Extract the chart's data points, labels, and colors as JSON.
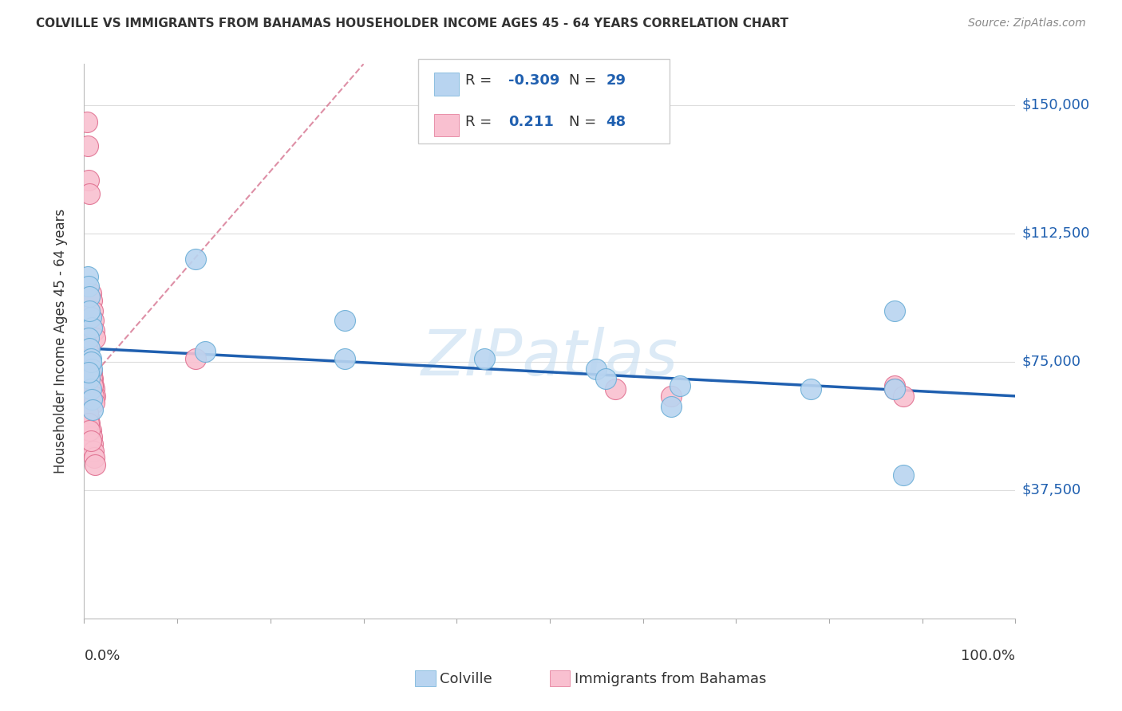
{
  "title": "COLVILLE VS IMMIGRANTS FROM BAHAMAS HOUSEHOLDER INCOME AGES 45 - 64 YEARS CORRELATION CHART",
  "source": "Source: ZipAtlas.com",
  "ylabel": "Householder Income Ages 45 - 64 years",
  "xlim": [
    0,
    1.0
  ],
  "ylim": [
    0,
    162000
  ],
  "yticks": [
    0,
    37500,
    75000,
    112500,
    150000
  ],
  "ytick_labels": [
    "",
    "$37,500",
    "$75,000",
    "$112,500",
    "$150,000"
  ],
  "background_color": "#ffffff",
  "grid_color": "#dddddd",
  "watermark": "ZIPatlas",
  "watermark_color": "#c5ddf0",
  "colville_color": "#b8d4f0",
  "colville_edge": "#6baed6",
  "bahamas_color": "#f9c0d0",
  "bahamas_edge": "#e07090",
  "colville_line_color": "#2060b0",
  "bahamas_line_color": "#d06080",
  "title_color": "#333333",
  "source_color": "#888888",
  "axis_label_color": "#333333",
  "tick_label_color_y": "#2060b0",
  "colville_x": [
    0.004,
    0.005,
    0.006,
    0.007,
    0.008,
    0.005,
    0.006,
    0.006,
    0.007,
    0.008,
    0.006,
    0.007,
    0.008,
    0.009,
    0.007,
    0.12,
    0.13,
    0.28,
    0.28,
    0.43,
    0.55,
    0.56,
    0.63,
    0.64,
    0.78,
    0.87,
    0.87,
    0.88,
    0.005
  ],
  "colville_y": [
    100000,
    97000,
    94000,
    88000,
    85000,
    82000,
    79000,
    90000,
    76000,
    73000,
    70000,
    67000,
    64000,
    61000,
    75000,
    105000,
    78000,
    87000,
    76000,
    76000,
    73000,
    70000,
    62000,
    68000,
    67000,
    90000,
    67000,
    42000,
    72000
  ],
  "bahamas_x": [
    0.003,
    0.004,
    0.005,
    0.006,
    0.007,
    0.008,
    0.009,
    0.01,
    0.011,
    0.012,
    0.003,
    0.004,
    0.005,
    0.006,
    0.007,
    0.008,
    0.009,
    0.01,
    0.011,
    0.012,
    0.003,
    0.004,
    0.005,
    0.006,
    0.007,
    0.008,
    0.009,
    0.01,
    0.011,
    0.012,
    0.004,
    0.005,
    0.006,
    0.007,
    0.008,
    0.009,
    0.01,
    0.011,
    0.004,
    0.005,
    0.006,
    0.007,
    0.12,
    0.57,
    0.63,
    0.87,
    0.87,
    0.88
  ],
  "bahamas_y": [
    145000,
    138000,
    128000,
    124000,
    95000,
    93000,
    90000,
    87000,
    84000,
    82000,
    80000,
    78000,
    76000,
    75000,
    73000,
    72000,
    70000,
    68000,
    67000,
    65000,
    63000,
    61000,
    59000,
    57000,
    55000,
    53000,
    51000,
    49000,
    47000,
    45000,
    78000,
    76000,
    73000,
    72000,
    70000,
    68000,
    65000,
    63000,
    60000,
    57000,
    55000,
    52000,
    76000,
    67000,
    65000,
    68000,
    67000,
    65000
  ]
}
